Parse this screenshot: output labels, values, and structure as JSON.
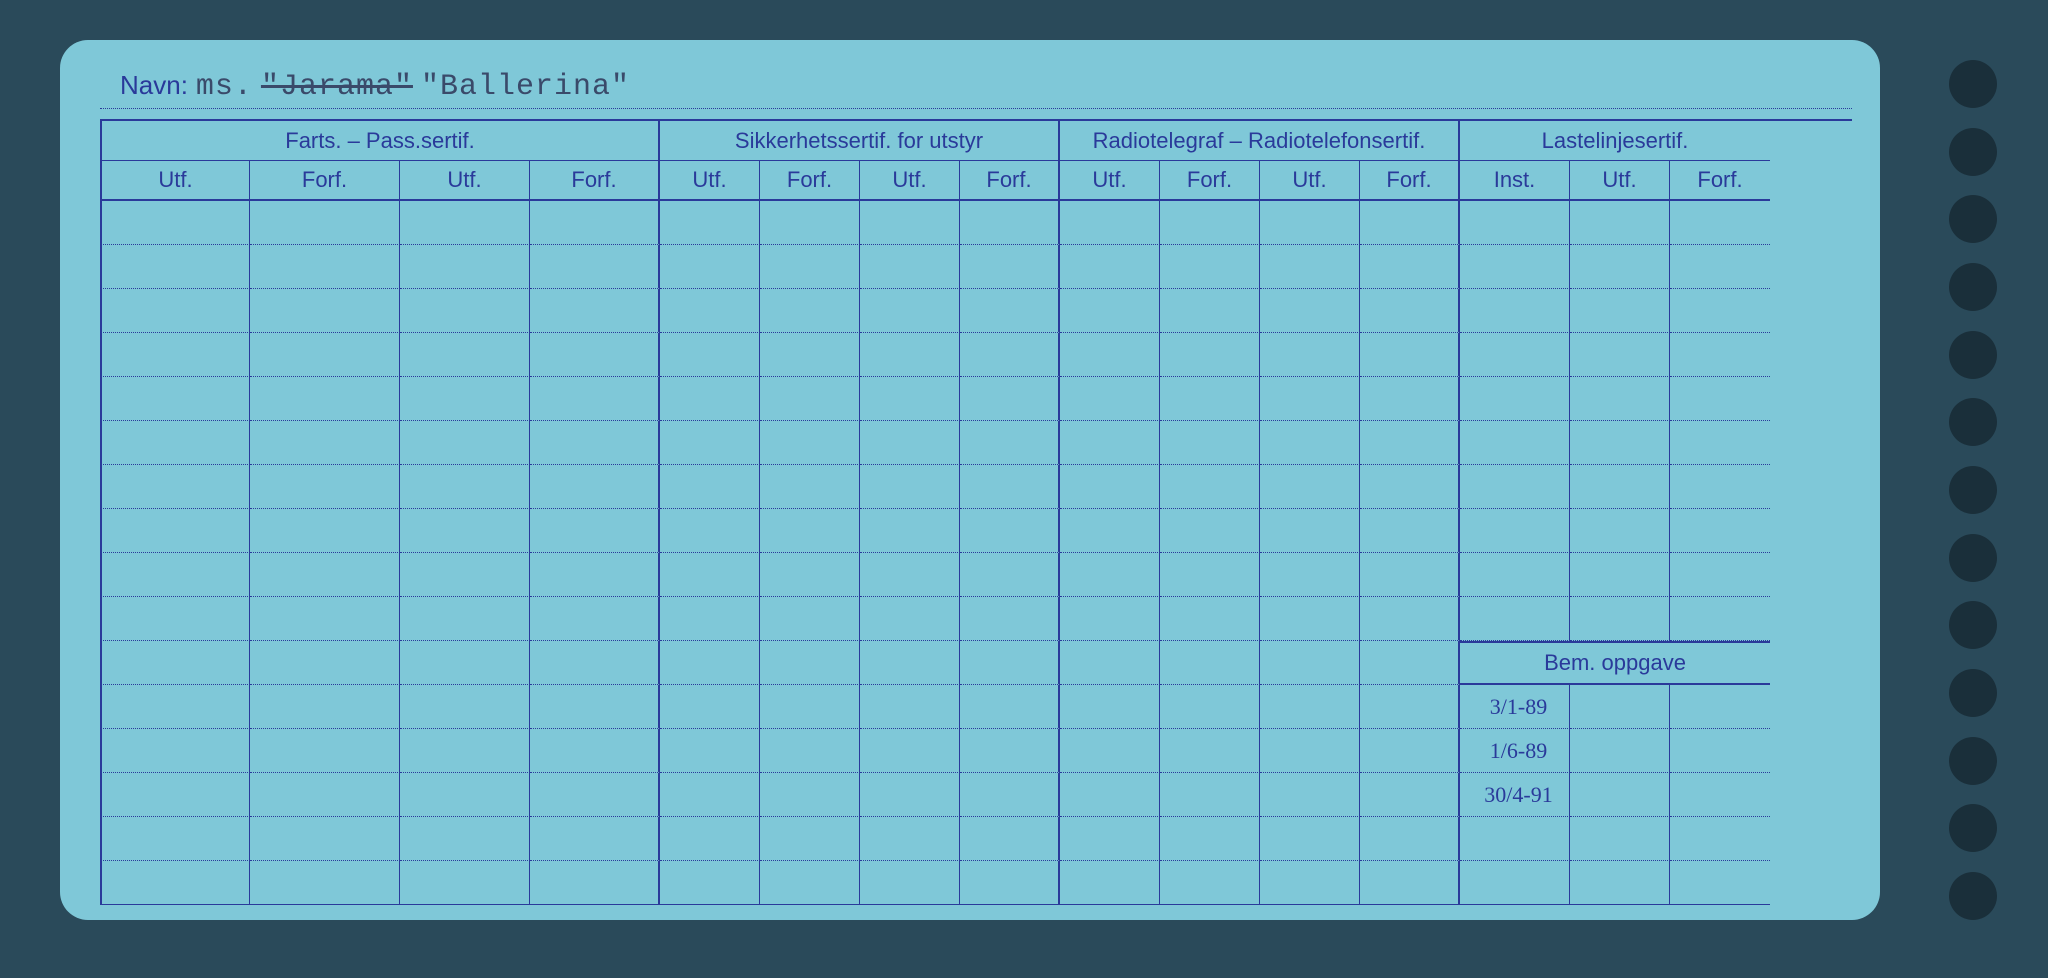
{
  "card": {
    "background_color": "#7fc8d8",
    "line_color": "#2a3a9a",
    "punch_holes": 13
  },
  "name": {
    "label": "Navn:",
    "prefix": "ms.",
    "value_struck": "\"Jarama\"",
    "value": "\"Ballerina\""
  },
  "groups": [
    {
      "label": "Farts. – Pass.sertif.",
      "subs": [
        "Utf.",
        "Forf.",
        "Utf.",
        "Forf."
      ]
    },
    {
      "label": "Sikkerhetssertif. for utstyr",
      "subs": [
        "Utf.",
        "Forf.",
        "Utf.",
        "Forf."
      ]
    },
    {
      "label": "Radiotelegraf – Radiotelefonsertif.",
      "subs": [
        "Utf.",
        "Forf.",
        "Utf.",
        "Forf."
      ]
    },
    {
      "label": "Lastelinjesertif.",
      "subs": [
        "Inst.",
        "Utf.",
        "Forf."
      ]
    }
  ],
  "bem": {
    "label": "Bem. oppgave",
    "entries": [
      "3/1-89",
      "1/6-89",
      "30/4-91",
      "",
      ""
    ]
  },
  "body_rows_main": 16,
  "body_rows_laste": 10
}
